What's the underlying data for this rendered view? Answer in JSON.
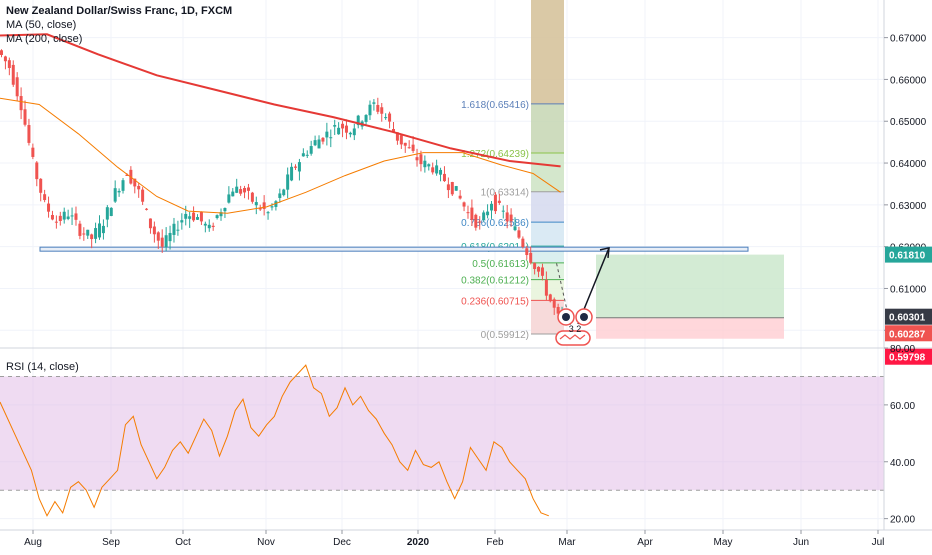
{
  "header": {
    "title": "New Zealand Dollar/Swiss Franc, 1D, FXCM",
    "ma50_label": "MA (50, close)",
    "ma200_label": "MA (200, close)",
    "rsi_label": "RSI (14, close)"
  },
  "colors": {
    "up": "#26a69a",
    "down": "#ef5350",
    "ma50": "#f57c00",
    "ma200": "#e53935",
    "rsi": "#f57c00",
    "rsi_band": "#e1bee7",
    "horizontal_line": "#4a7ebb",
    "target": "#c8e6c9",
    "stop": "#ffcdd2"
  },
  "price_axis": {
    "ticks": [
      "0.67000",
      "0.66000",
      "0.65000",
      "0.64000",
      "0.63000",
      "0.62000",
      "0.61000",
      "0.60000"
    ],
    "tags": [
      {
        "label": "0.61810",
        "color": "#26a69a"
      },
      {
        "label": "0.60301",
        "color": "#363a45"
      },
      {
        "label": "0.60287",
        "color": "#ef5350"
      },
      {
        "label": "0.59798",
        "color": "#ff1744"
      }
    ]
  },
  "rsi_axis": {
    "ticks": [
      "80.00",
      "60.00",
      "40.00",
      "20.00"
    ]
  },
  "time_axis": {
    "labels": [
      "Aug",
      "Sep",
      "Oct",
      "Nov",
      "Dec",
      "2020",
      "Feb",
      "Mar",
      "Apr",
      "May",
      "Jun",
      "Jul"
    ]
  },
  "fib_levels": [
    {
      "label": "1.618(0.65416)",
      "value": 0.65416
    },
    {
      "label": "1.272(0.64239)",
      "value": 0.64239
    },
    {
      "label": "1(0.63314)",
      "value": 0.63314
    },
    {
      "label": "0.786(0.62586)",
      "value": 0.62586
    },
    {
      "label": "0.618(0.62014)",
      "value": 0.62014
    },
    {
      "label": "0.5(0.61613)",
      "value": 0.61613
    },
    {
      "label": "0.382(0.61212)",
      "value": 0.61212
    },
    {
      "label": "0.236(0.60715)",
      "value": 0.60715
    },
    {
      "label": "0(0.59912)",
      "value": 0.59912
    }
  ],
  "annotations": {
    "countdown": "3 2"
  },
  "chart_data": [
    {
      "type": "candlestick",
      "title": "New Zealand Dollar/Swiss Franc, 1D, FXCM",
      "xlabel": "",
      "ylabel": "",
      "ylim": [
        0.596,
        0.679
      ],
      "x_ticks": [
        "Aug",
        "Sep",
        "Oct",
        "Nov",
        "Dec",
        "2020",
        "Feb",
        "Mar",
        "Apr",
        "May",
        "Jun",
        "Jul"
      ],
      "price_path": [
        [
          0,
          0.667
        ],
        [
          3,
          0.663
        ],
        [
          6,
          0.654
        ],
        [
          9,
          0.64
        ],
        [
          12,
          0.63
        ],
        [
          15,
          0.626
        ],
        [
          18,
          0.628
        ],
        [
          21,
          0.624
        ],
        [
          24,
          0.622
        ],
        [
          27,
          0.626
        ],
        [
          30,
          0.633
        ],
        [
          33,
          0.638
        ],
        [
          36,
          0.633
        ],
        [
          39,
          0.625
        ],
        [
          42,
          0.62
        ],
        [
          45,
          0.624
        ],
        [
          48,
          0.628
        ],
        [
          51,
          0.627
        ],
        [
          54,
          0.624
        ],
        [
          57,
          0.629
        ],
        [
          60,
          0.634
        ],
        [
          63,
          0.633
        ],
        [
          66,
          0.63
        ],
        [
          69,
          0.628
        ],
        [
          72,
          0.632
        ],
        [
          75,
          0.638
        ],
        [
          78,
          0.642
        ],
        [
          81,
          0.645
        ],
        [
          84,
          0.647
        ],
        [
          87,
          0.649
        ],
        [
          90,
          0.648
        ],
        [
          93,
          0.651
        ],
        [
          96,
          0.654
        ],
        [
          99,
          0.651
        ],
        [
          102,
          0.646
        ],
        [
          105,
          0.643
        ],
        [
          108,
          0.64
        ],
        [
          111,
          0.639
        ],
        [
          114,
          0.636
        ],
        [
          117,
          0.633
        ],
        [
          120,
          0.628
        ],
        [
          123,
          0.625
        ],
        [
          126,
          0.631
        ],
        [
          129,
          0.628
        ],
        [
          132,
          0.624
        ],
        [
          135,
          0.619
        ],
        [
          138,
          0.614
        ],
        [
          141,
          0.607
        ],
        [
          143,
          0.60287
        ]
      ],
      "series": [
        {
          "name": "MA (50, close)",
          "values": [
            [
              0,
              0.6555
            ],
            [
              10,
              0.654
            ],
            [
              20,
              0.647
            ],
            [
              30,
              0.639
            ],
            [
              40,
              0.632
            ],
            [
              48,
              0.6285
            ],
            [
              58,
              0.628
            ],
            [
              68,
              0.6295
            ],
            [
              78,
              0.633
            ],
            [
              88,
              0.637
            ],
            [
              98,
              0.6405
            ],
            [
              108,
              0.6425
            ],
            [
              118,
              0.6425
            ],
            [
              128,
              0.6395
            ],
            [
              136,
              0.6375
            ],
            [
              143,
              0.633
            ]
          ]
        },
        {
          "name": "MA (200, close)",
          "values": [
            [
              0,
              0.6705
            ],
            [
              12,
              0.6708
            ],
            [
              25,
              0.666
            ],
            [
              40,
              0.661
            ],
            [
              55,
              0.6575
            ],
            [
              70,
              0.654
            ],
            [
              85,
              0.651
            ],
            [
              100,
              0.6475
            ],
            [
              115,
              0.6435
            ],
            [
              130,
              0.6405
            ],
            [
              143,
              0.6392
            ]
          ]
        }
      ],
      "horizontal_line": 0.6194,
      "position": {
        "entry": 0.60301,
        "target": 0.6181,
        "stop": 0.59798
      },
      "fib_levels": [
        0.65416,
        0.64239,
        0.63314,
        0.62586,
        0.62014,
        0.61613,
        0.61212,
        0.60715,
        0.59912
      ]
    },
    {
      "type": "line",
      "title": "RSI (14, close)",
      "xlabel": "",
      "ylabel": "",
      "ylim": [
        16,
        80
      ],
      "overbought": 70,
      "oversold": 30,
      "series": [
        {
          "name": "RSI (14, close)",
          "values": [
            [
              0,
              61
            ],
            [
              4,
              49
            ],
            [
              8,
              37
            ],
            [
              10,
              27
            ],
            [
              12,
              21
            ],
            [
              14,
              26
            ],
            [
              16,
              22
            ],
            [
              18,
              31
            ],
            [
              20,
              33
            ],
            [
              22,
              30
            ],
            [
              24,
              24
            ],
            [
              26,
              31
            ],
            [
              28,
              34
            ],
            [
              30,
              37
            ],
            [
              32,
              53
            ],
            [
              34,
              56
            ],
            [
              36,
              46
            ],
            [
              38,
              40
            ],
            [
              40,
              34
            ],
            [
              42,
              38
            ],
            [
              44,
              44
            ],
            [
              46,
              47
            ],
            [
              48,
              43
            ],
            [
              50,
              49
            ],
            [
              52,
              55
            ],
            [
              54,
              51
            ],
            [
              56,
              42
            ],
            [
              58,
              49
            ],
            [
              60,
              58
            ],
            [
              62,
              62
            ],
            [
              64,
              52
            ],
            [
              66,
              49
            ],
            [
              68,
              53
            ],
            [
              70,
              56
            ],
            [
              72,
              63
            ],
            [
              74,
              68
            ],
            [
              76,
              71
            ],
            [
              78,
              74
            ],
            [
              80,
              66
            ],
            [
              82,
              64
            ],
            [
              84,
              56
            ],
            [
              86,
              59
            ],
            [
              88,
              66
            ],
            [
              90,
              60
            ],
            [
              92,
              63
            ],
            [
              94,
              58
            ],
            [
              96,
              55
            ],
            [
              98,
              50
            ],
            [
              100,
              46
            ],
            [
              102,
              40
            ],
            [
              104,
              37
            ],
            [
              106,
              44
            ],
            [
              108,
              39
            ],
            [
              110,
              38
            ],
            [
              112,
              40
            ],
            [
              114,
              33
            ],
            [
              116,
              27
            ],
            [
              118,
              33
            ],
            [
              120,
              45
            ],
            [
              122,
              41
            ],
            [
              124,
              37
            ],
            [
              126,
              47
            ],
            [
              128,
              45
            ],
            [
              130,
              40
            ],
            [
              132,
              37
            ],
            [
              134,
              34
            ],
            [
              136,
              27
            ],
            [
              138,
              22
            ],
            [
              140,
              21
            ]
          ]
        }
      ]
    }
  ]
}
